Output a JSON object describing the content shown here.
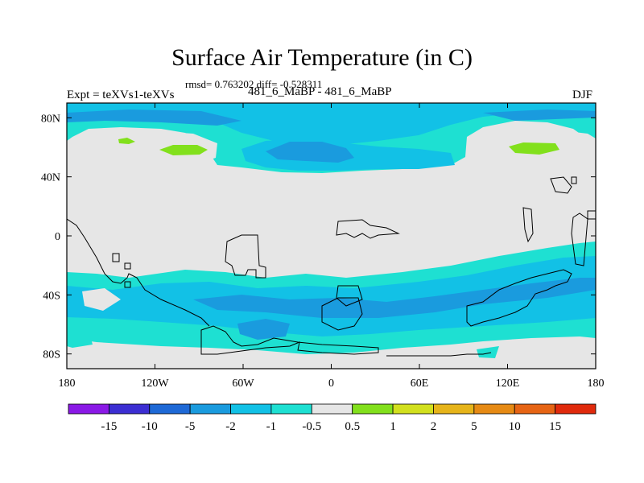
{
  "title": "Surface Air Temperature (in C)",
  "stats_line": "rmsd= 0.763202 diff= -0.528311",
  "left_label": "Expt = teXVs1-teXVs",
  "center_label": "481_6_MaBP - 481_6_MaBP",
  "right_label": "DJF",
  "map": {
    "projection": "cylindrical-equidistant",
    "lon_range": [
      -180,
      180
    ],
    "lat_range": [
      -90,
      90
    ],
    "x_ticks": [
      {
        "lon": -180,
        "label": "180"
      },
      {
        "lon": -120,
        "label": "120W"
      },
      {
        "lon": -60,
        "label": "60W"
      },
      {
        "lon": 0,
        "label": "0"
      },
      {
        "lon": 60,
        "label": "60E"
      },
      {
        "lon": 120,
        "label": "120E"
      },
      {
        "lon": 180,
        "label": "180"
      }
    ],
    "y_ticks": [
      {
        "lat": 80,
        "label": "80N"
      },
      {
        "lat": 40,
        "label": "40N"
      },
      {
        "lat": 0,
        "label": "0"
      },
      {
        "lat": -40,
        "label": "40S"
      },
      {
        "lat": -80,
        "label": "80S"
      }
    ]
  },
  "colorbar": {
    "labels": [
      "-15",
      "-10",
      "-5",
      "-2",
      "-1",
      "-0.5",
      "0.5",
      "1",
      "2",
      "5",
      "10",
      "15"
    ],
    "colors": [
      "#8a19e6",
      "#3c2ed2",
      "#1e69d6",
      "#1a9bde",
      "#12c1e6",
      "#1ee0d2",
      "#e6e6e6",
      "#82e01c",
      "#d2e01e",
      "#e6b41a",
      "#e68a14",
      "#e66414",
      "#e02a0c"
    ]
  }
}
